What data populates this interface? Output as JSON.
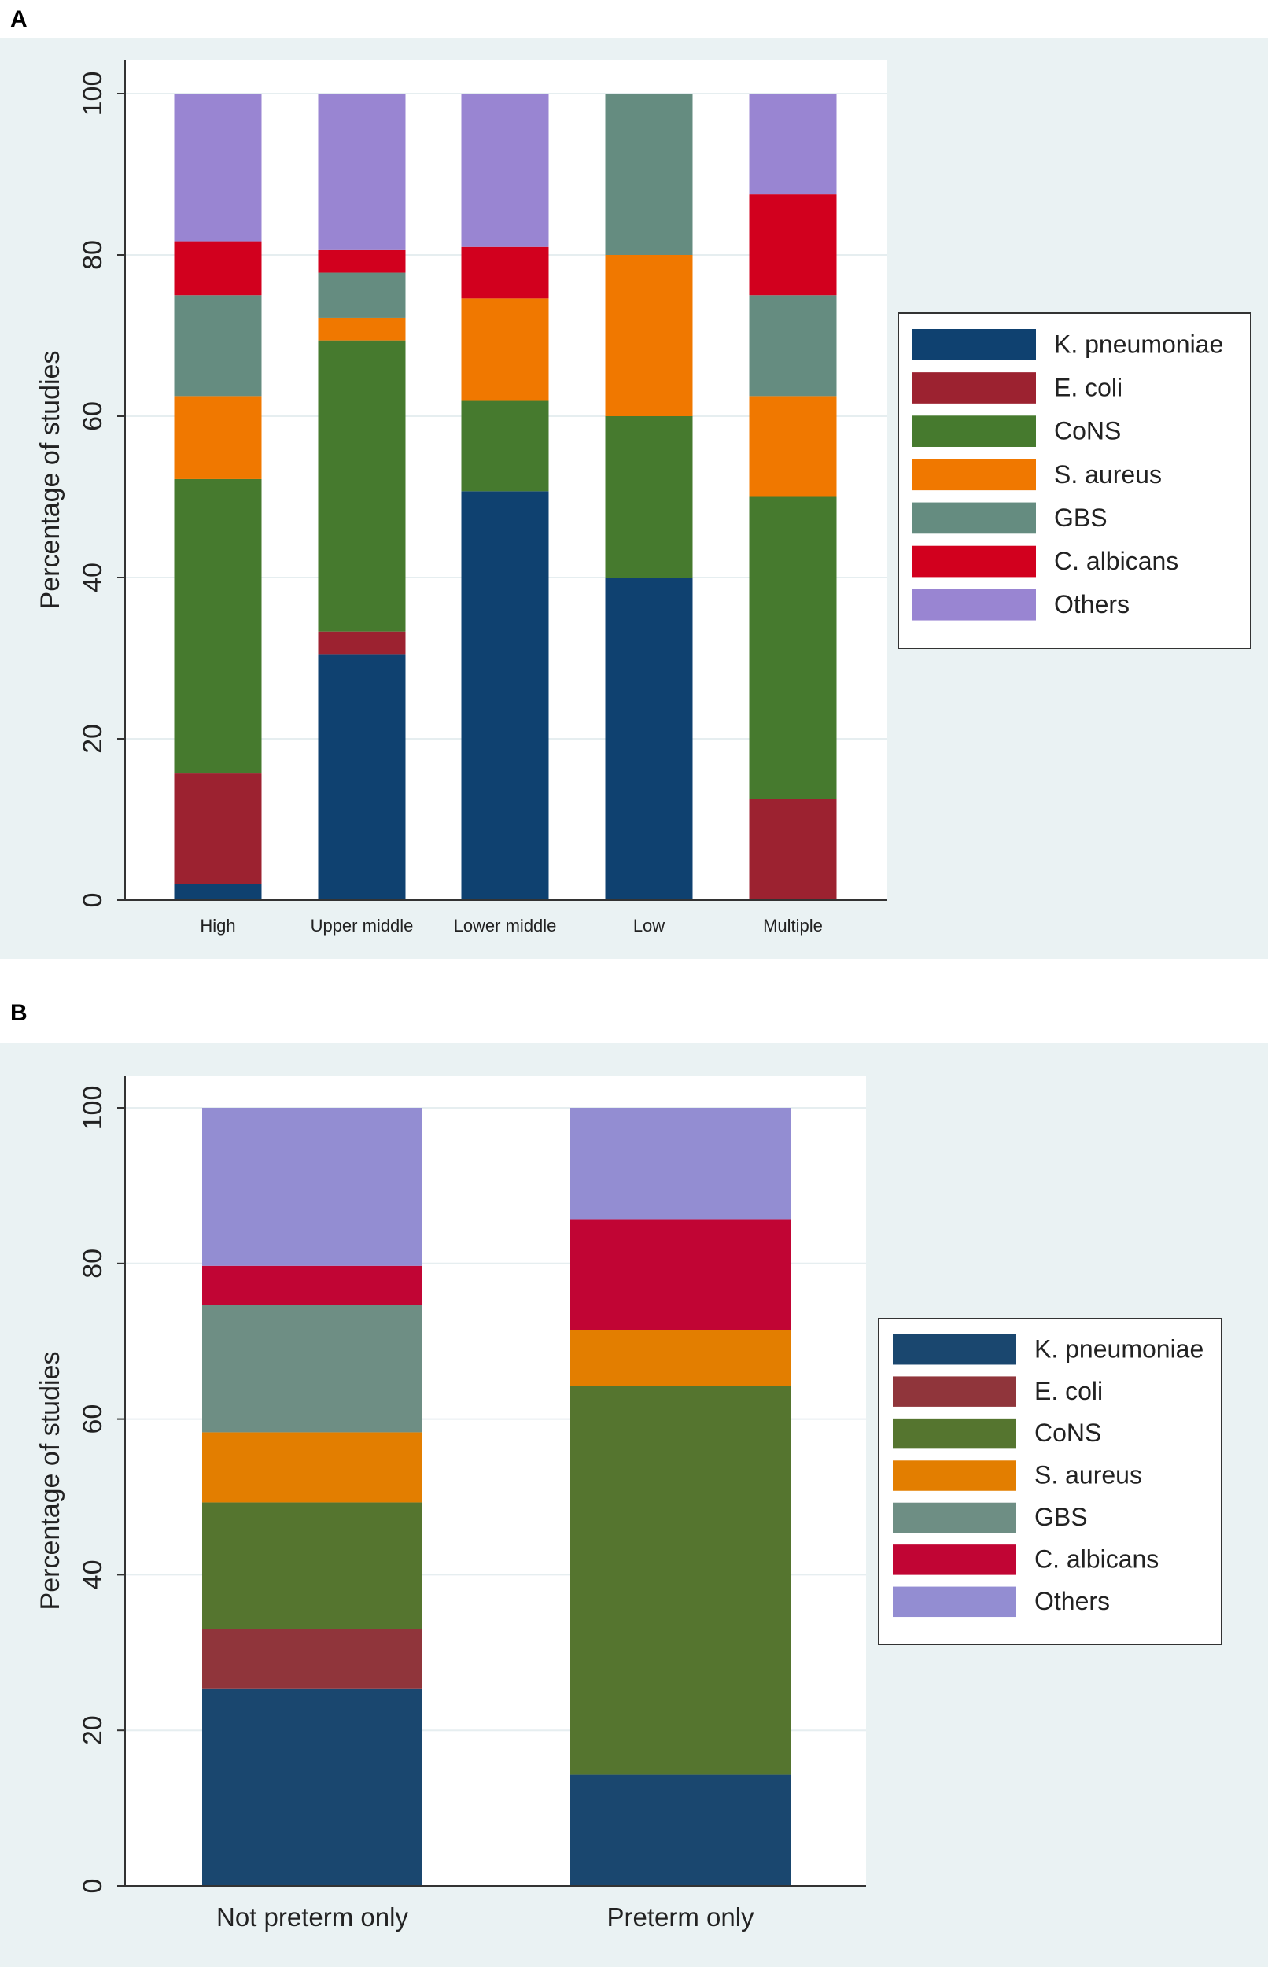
{
  "chart_data": [
    {
      "panel_label": "A",
      "type": "bar",
      "stacked": true,
      "title": "",
      "xlabel": "",
      "ylabel": "Percentage of studies",
      "ylim": [
        0,
        100
      ],
      "yticks": [
        0,
        20,
        40,
        60,
        80,
        100
      ],
      "grid": true,
      "legend_position": "right",
      "categories": [
        "High",
        "Upper middle",
        "Lower middle",
        "Low",
        "Multiple"
      ],
      "series": [
        {
          "name": "K. pneumoniae",
          "color": "#0f4170",
          "values": [
            2.0,
            30.5,
            50.7,
            40.0,
            0
          ]
        },
        {
          "name": "E. coli",
          "color": "#9c2230",
          "values": [
            13.7,
            2.8,
            0,
            0,
            12.5
          ]
        },
        {
          "name": "CoNS",
          "color": "#467a2e",
          "values": [
            36.5,
            36.1,
            11.2,
            20.0,
            37.5
          ]
        },
        {
          "name": "S. aureus",
          "color": "#f07800",
          "values": [
            10.3,
            2.8,
            12.7,
            20.0,
            12.5
          ]
        },
        {
          "name": "GBS",
          "color": "#658c80",
          "values": [
            12.5,
            5.6,
            0,
            20.0,
            12.5
          ]
        },
        {
          "name": "C. albicans",
          "color": "#d2001e",
          "values": [
            6.7,
            2.8,
            6.4,
            0,
            12.5
          ]
        },
        {
          "name": "Others",
          "color": "#9985d2",
          "values": [
            18.3,
            19.4,
            19.0,
            0,
            12.5
          ]
        }
      ]
    },
    {
      "panel_label": "B",
      "type": "bar",
      "stacked": true,
      "title": "",
      "xlabel": "",
      "ylabel": "Percentage of studies",
      "ylim": [
        0,
        100
      ],
      "yticks": [
        0,
        20,
        40,
        60,
        80,
        100
      ],
      "grid": true,
      "legend_position": "right",
      "categories": [
        "Not preterm only",
        "Preterm only"
      ],
      "series": [
        {
          "name": "K. pneumoniae",
          "color": "#1a476f",
          "values": [
            25.3,
            14.3
          ]
        },
        {
          "name": "E. coli",
          "color": "#90353b",
          "values": [
            7.7,
            0
          ]
        },
        {
          "name": "CoNS",
          "color": "#55752f",
          "values": [
            16.3,
            50.0
          ]
        },
        {
          "name": "S. aureus",
          "color": "#e37e00",
          "values": [
            9.0,
            7.1
          ]
        },
        {
          "name": "GBS",
          "color": "#6e8e84",
          "values": [
            16.4,
            0
          ]
        },
        {
          "name": "C. albicans",
          "color": "#c10534",
          "values": [
            5.0,
            14.3
          ]
        },
        {
          "name": "Others",
          "color": "#938dd2",
          "values": [
            20.3,
            14.3
          ]
        }
      ]
    }
  ]
}
